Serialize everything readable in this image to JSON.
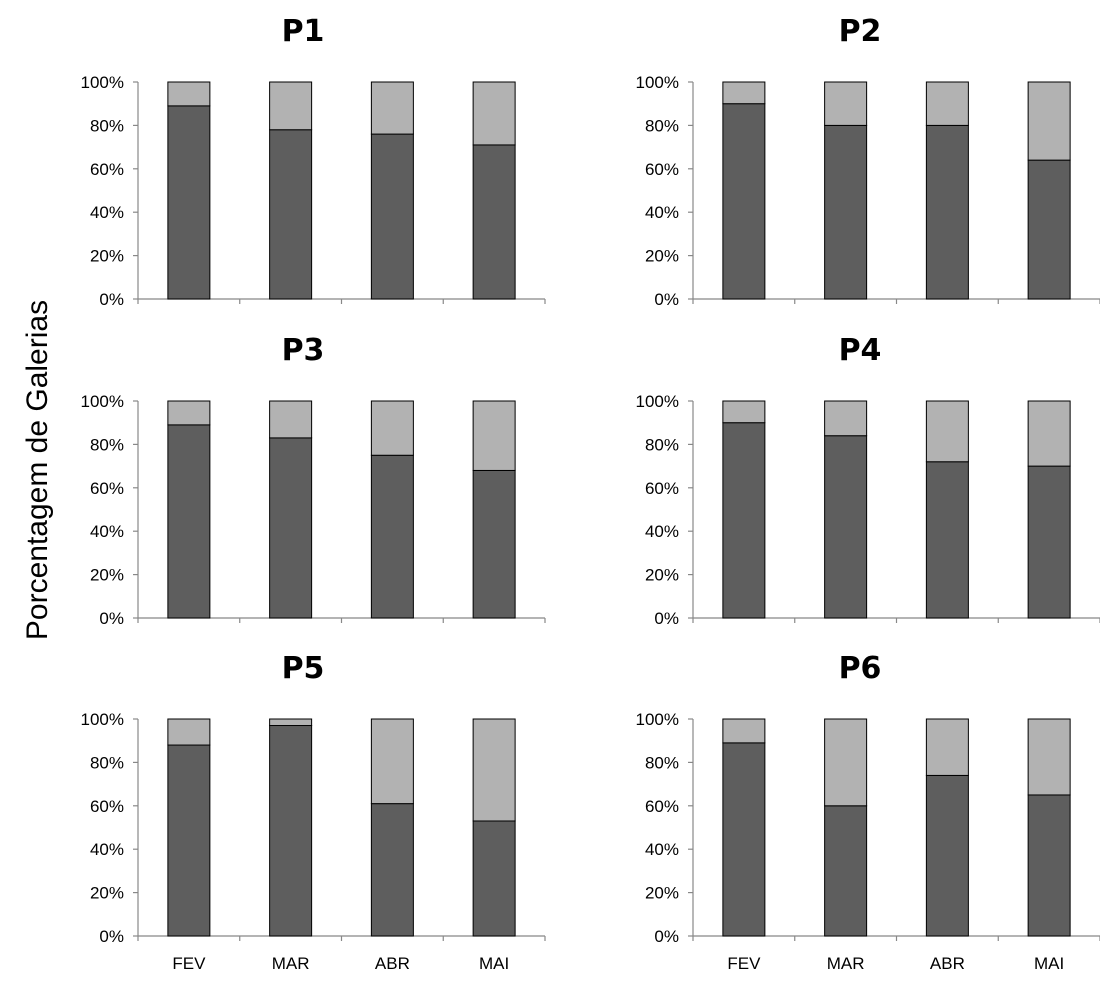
{
  "figure": {
    "ylabel": "Porcentagem de Galerias"
  },
  "colors": {
    "lower": "#5e5e5e",
    "upper": "#b2b2b2",
    "stroke": "#000000"
  },
  "chart_data": [
    {
      "type": "bar",
      "stacked": true,
      "title": "P1",
      "categories": [
        "FEV",
        "MAR",
        "ABR",
        "MAI"
      ],
      "series": [
        {
          "values": [
            89,
            78,
            76,
            71
          ]
        },
        {
          "values": [
            11,
            22,
            24,
            29
          ]
        }
      ],
      "ylim": [
        0,
        100
      ],
      "yticks": [
        "0%",
        "20%",
        "40%",
        "60%",
        "80%",
        "100%"
      ],
      "show_category_labels": false
    },
    {
      "type": "bar",
      "stacked": true,
      "title": "P2",
      "categories": [
        "FEV",
        "MAR",
        "ABR",
        "MAI"
      ],
      "series": [
        {
          "values": [
            90,
            80,
            80,
            64
          ]
        },
        {
          "values": [
            10,
            20,
            20,
            36
          ]
        }
      ],
      "ylim": [
        0,
        100
      ],
      "yticks": [
        "0%",
        "20%",
        "40%",
        "60%",
        "80%",
        "100%"
      ],
      "show_category_labels": false
    },
    {
      "type": "bar",
      "stacked": true,
      "title": "P3",
      "categories": [
        "FEV",
        "MAR",
        "ABR",
        "MAI"
      ],
      "series": [
        {
          "values": [
            89,
            83,
            75,
            68
          ]
        },
        {
          "values": [
            11,
            17,
            25,
            32
          ]
        }
      ],
      "ylim": [
        0,
        100
      ],
      "yticks": [
        "0%",
        "20%",
        "40%",
        "60%",
        "80%",
        "100%"
      ],
      "show_category_labels": false
    },
    {
      "type": "bar",
      "stacked": true,
      "title": "P4",
      "categories": [
        "FEV",
        "MAR",
        "ABR",
        "MAI"
      ],
      "series": [
        {
          "values": [
            90,
            84,
            72,
            70
          ]
        },
        {
          "values": [
            10,
            16,
            28,
            30
          ]
        }
      ],
      "ylim": [
        0,
        100
      ],
      "yticks": [
        "0%",
        "20%",
        "40%",
        "60%",
        "80%",
        "100%"
      ],
      "show_category_labels": false
    },
    {
      "type": "bar",
      "stacked": true,
      "title": "P5",
      "categories": [
        "FEV",
        "MAR",
        "ABR",
        "MAI"
      ],
      "series": [
        {
          "values": [
            88,
            97,
            61,
            53
          ]
        },
        {
          "values": [
            12,
            3,
            39,
            47
          ]
        }
      ],
      "ylim": [
        0,
        100
      ],
      "yticks": [
        "0%",
        "20%",
        "40%",
        "60%",
        "80%",
        "100%"
      ],
      "show_category_labels": true
    },
    {
      "type": "bar",
      "stacked": true,
      "title": "P6",
      "categories": [
        "FEV",
        "MAR",
        "ABR",
        "MAI"
      ],
      "series": [
        {
          "values": [
            89,
            60,
            74,
            65
          ]
        },
        {
          "values": [
            11,
            40,
            26,
            35
          ]
        }
      ],
      "ylim": [
        0,
        100
      ],
      "yticks": [
        "0%",
        "20%",
        "40%",
        "60%",
        "80%",
        "100%"
      ],
      "show_category_labels": true
    }
  ]
}
